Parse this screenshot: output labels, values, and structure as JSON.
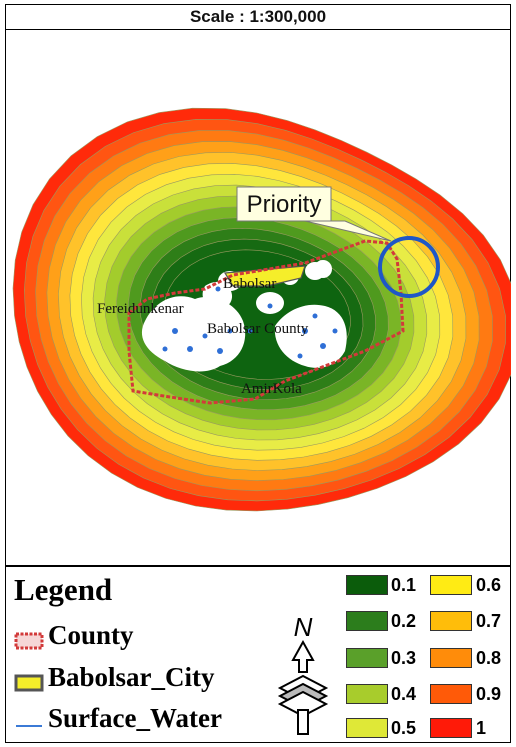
{
  "scale_label": "Scale : 1:300,000",
  "map": {
    "callout": "Priority",
    "place_labels": {
      "babolsar": "Babolsar",
      "fereidunkenar": "Fereidunkenar",
      "babolsar_county": "Babolsar County",
      "amirkola": "AmirKola"
    },
    "ring_colors": [
      "#ff2a0a",
      "#ff5512",
      "#ff7a12",
      "#ffa018",
      "#ffc22a",
      "#ffe63c",
      "#e8ec46",
      "#c9e03a",
      "#a3cc2c",
      "#7ab526",
      "#4f9a1e",
      "#2e7e18",
      "#166a12",
      "#0e6410"
    ]
  },
  "legend": {
    "title": "Legend",
    "items": [
      {
        "label": "County",
        "icon": "county-symbol"
      },
      {
        "label": "Babolsar_City",
        "icon": "city-symbol"
      },
      {
        "label": "Surface_Water",
        "icon": "water-line-symbol"
      }
    ],
    "north_label": "N",
    "classes": [
      {
        "label": "0.1",
        "color": "#0b5c0b"
      },
      {
        "label": "0.2",
        "color": "#2c7d1c"
      },
      {
        "label": "0.3",
        "color": "#5aa02a"
      },
      {
        "label": "0.4",
        "color": "#a8cc2c"
      },
      {
        "label": "0.5",
        "color": "#dfe837"
      },
      {
        "label": "0.6",
        "color": "#ffeb14"
      },
      {
        "label": "0.7",
        "color": "#ffbd0a"
      },
      {
        "label": "0.8",
        "color": "#ff8c0a"
      },
      {
        "label": "0.9",
        "color": "#ff5a08"
      },
      {
        "label": "1",
        "color": "#ff1a08"
      }
    ]
  }
}
